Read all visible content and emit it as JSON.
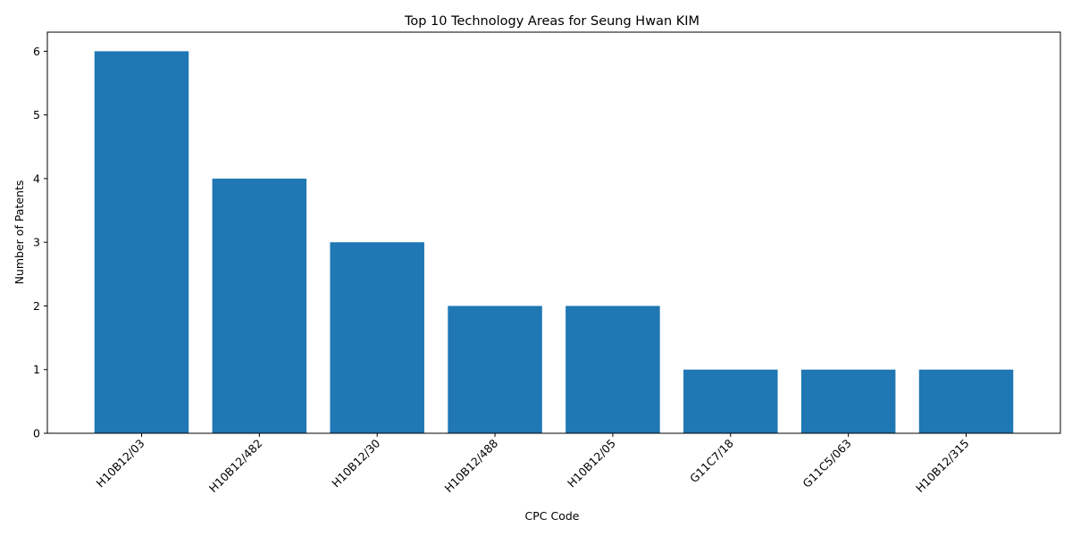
{
  "chart_data": {
    "type": "bar",
    "title": "Top 10 Technology Areas for Seung Hwan KIM",
    "xlabel": "CPC Code",
    "ylabel": "Number of Patents",
    "categories": [
      "H10B12/03",
      "H10B12/482",
      "H10B12/30",
      "H10B12/488",
      "H10B12/05",
      "G11C7/18",
      "G11C5/063",
      "H10B12/315"
    ],
    "values": [
      6,
      4,
      3,
      2,
      2,
      1,
      1,
      1
    ],
    "ylim": [
      0,
      6.3
    ],
    "yticks": [
      0,
      1,
      2,
      3,
      4,
      5,
      6
    ],
    "grid": false,
    "legend": "none",
    "bar_color": "#1f77b4"
  }
}
